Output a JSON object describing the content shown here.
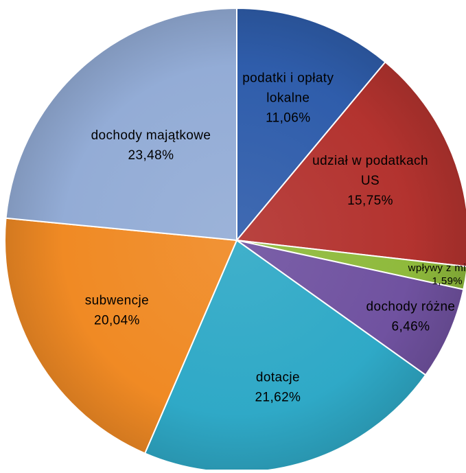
{
  "chart_data": {
    "type": "pie",
    "slices": [
      {
        "label": [
          "podatki i opłaty",
          "lokalne"
        ],
        "value": 11.06,
        "value_text": "11,06%",
        "color": "#2f5dab"
      },
      {
        "label": [
          "udział w podatkach",
          "US"
        ],
        "value": 15.75,
        "value_text": "15,75%",
        "color": "#b3332f"
      },
      {
        "label": [
          "wpływy z mienia"
        ],
        "value": 1.59,
        "value_text": "1,59%",
        "color": "#8fba3c"
      },
      {
        "label": [
          "dochody różne"
        ],
        "value": 6.46,
        "value_text": "6,46%",
        "color": "#7052a0"
      },
      {
        "label": [
          "dotacje"
        ],
        "value": 21.62,
        "value_text": "21,62%",
        "color": "#2fa9c7"
      },
      {
        "label": [
          "subwencje"
        ],
        "value": 20.04,
        "value_text": "20,04%",
        "color": "#f08a24"
      },
      {
        "label": [
          "dochody majątkowe"
        ],
        "value": 23.48,
        "value_text": "23,48%",
        "color": "#93acd6"
      }
    ]
  }
}
